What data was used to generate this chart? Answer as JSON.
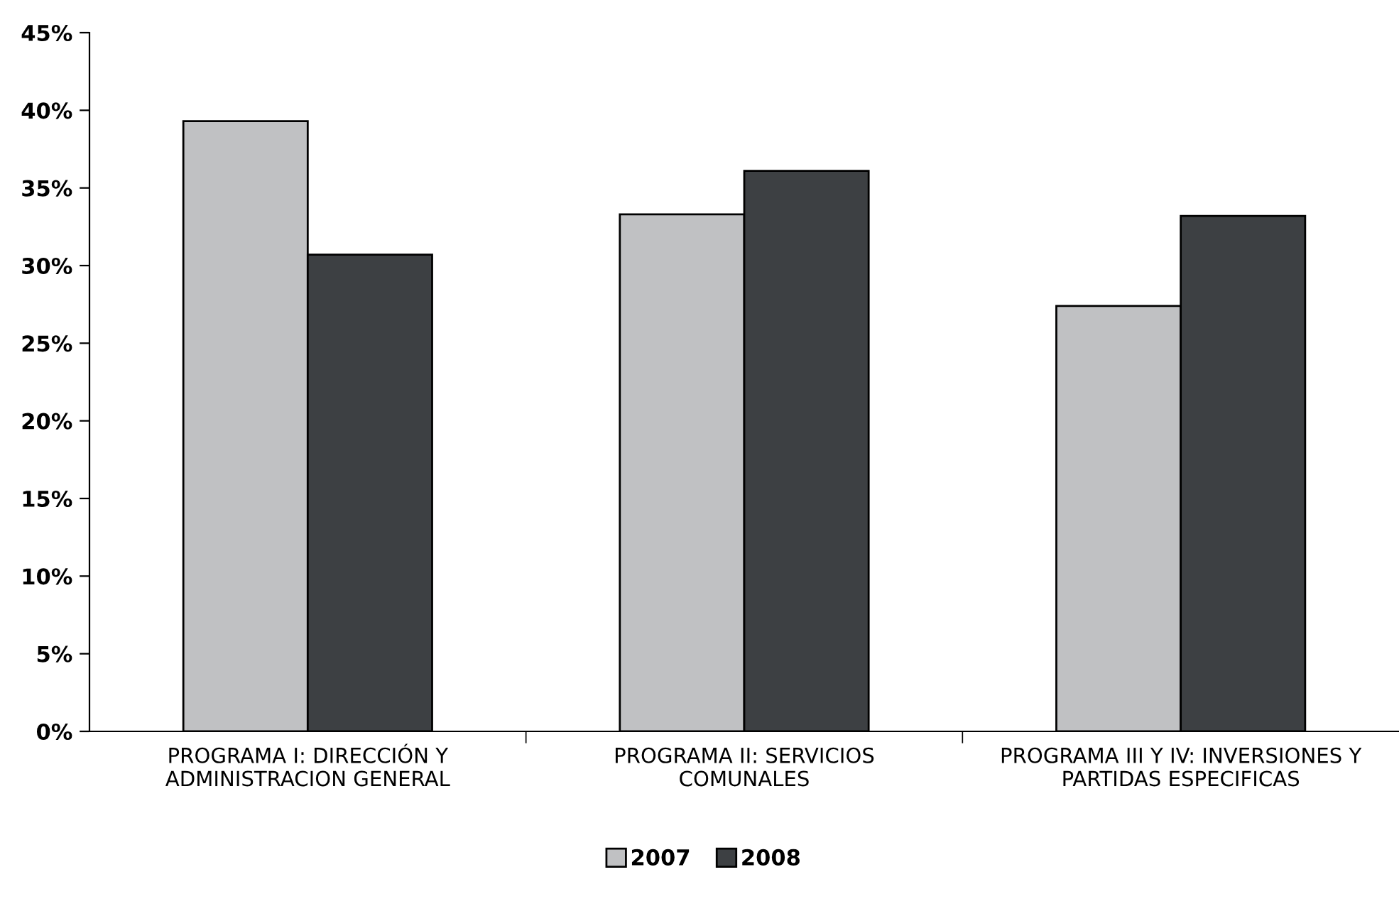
{
  "chart_data": {
    "type": "bar",
    "categories": [
      "PROGRAMA I: DIRECCIÓN Y\nADMINISTRACION GENERAL",
      "PROGRAMA II: SERVICIOS\nCOMUNALES",
      "PROGRAMA III Y IV: INVERSIONES Y\nPARTIDAS ESPECIFICAS"
    ],
    "series": [
      {
        "name": "2007",
        "color": "#c0c1c3",
        "values": [
          39.3,
          33.3,
          27.4
        ]
      },
      {
        "name": "2008",
        "color": "#3d4043",
        "values": [
          30.7,
          36.1,
          33.2
        ]
      }
    ],
    "ylim": [
      0,
      45
    ],
    "yticks": [
      {
        "value": 0,
        "label": "0%"
      },
      {
        "value": 5,
        "label": "5%"
      },
      {
        "value": 10,
        "label": "10%"
      },
      {
        "value": 15,
        "label": "15%"
      },
      {
        "value": 20,
        "label": "20%"
      },
      {
        "value": 25,
        "label": "25%"
      },
      {
        "value": 30,
        "label": "30%"
      },
      {
        "value": 35,
        "label": "35%"
      },
      {
        "value": 40,
        "label": "40%"
      },
      {
        "value": 45,
        "label": "45%"
      }
    ],
    "grid": false,
    "legend": "bottom"
  }
}
